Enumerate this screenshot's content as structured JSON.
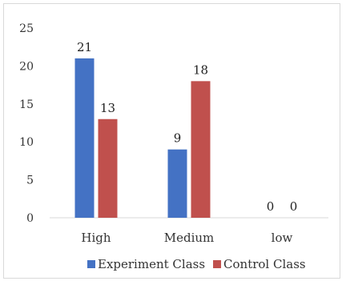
{
  "chart_data": {
    "type": "bar",
    "title": "",
    "xlabel": "",
    "ylabel": "",
    "categories": [
      "High",
      "Medium",
      "low"
    ],
    "series": [
      {
        "name": "Experiment Class",
        "values": [
          21,
          9,
          0
        ],
        "color": "#4472C4"
      },
      {
        "name": "Control Class",
        "values": [
          13,
          18,
          0
        ],
        "color": "#C0504D"
      }
    ],
    "ylim": [
      0,
      25
    ],
    "yticks": [
      0,
      5,
      10,
      15,
      20,
      25
    ],
    "grid": false,
    "data_labels": true,
    "legend_position": "bottom"
  }
}
